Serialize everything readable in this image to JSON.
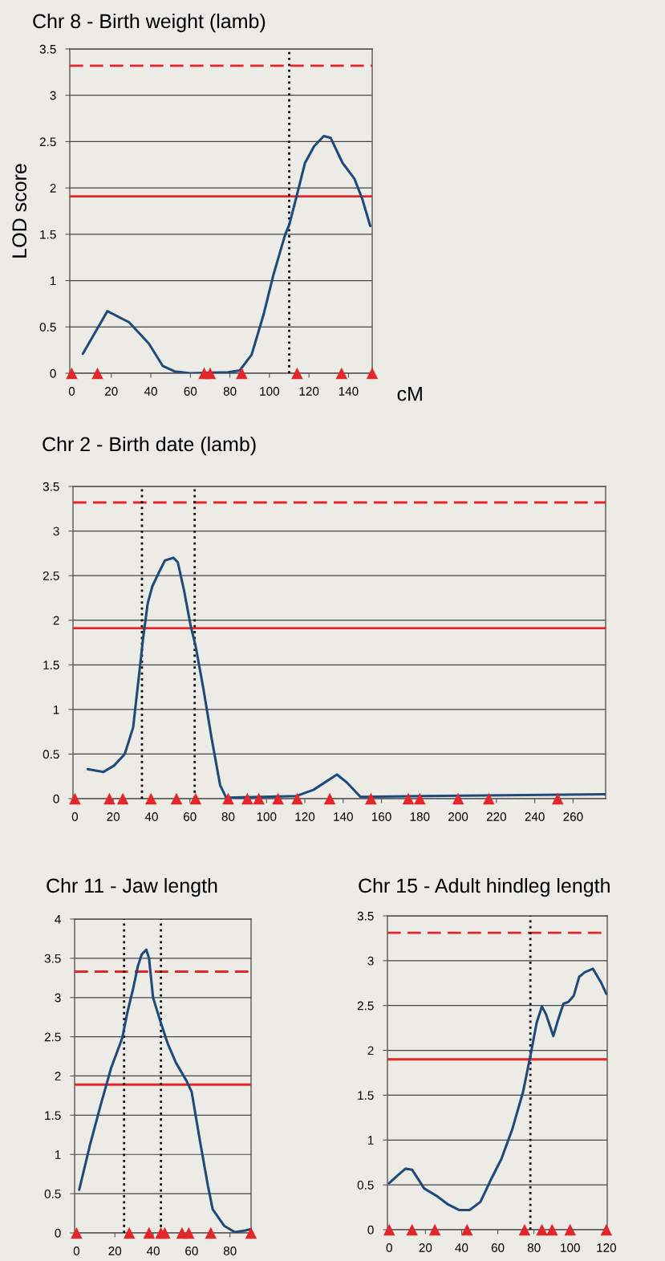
{
  "chart_data": [
    {
      "type": "line",
      "title": "Chr 8 - Birth weight (lamb)",
      "xlabel": "cM",
      "ylabel": "LOD score",
      "xlim": [
        -1,
        152
      ],
      "xticks": [
        0,
        20,
        40,
        60,
        80,
        100,
        120,
        140
      ],
      "ylim": [
        0,
        3.5
      ],
      "yticks": [
        0,
        0.5,
        1,
        1.5,
        2,
        2.5,
        3,
        3.5
      ],
      "grid": "y",
      "series": [
        {
          "type": "line",
          "color": "#1f4a7a",
          "x": [
            5.6,
            18,
            29,
            39,
            46,
            52,
            60,
            79,
            85,
            91,
            97,
            102,
            108,
            110,
            114,
            118,
            122.6,
            127.5,
            131,
            137,
            143,
            147,
            151
          ],
          "values": [
            0.21,
            0.67,
            0.55,
            0.32,
            0.08,
            0.02,
            0,
            0.01,
            0.03,
            0.2,
            0.63,
            1.06,
            1.5,
            1.6,
            1.93,
            2.27,
            2.45,
            2.56,
            2.54,
            2.27,
            2.1,
            1.88,
            1.59
          ]
        },
        {
          "type": "scatter",
          "color": "#e3262a",
          "marker": "triangle",
          "x": [
            0,
            13,
            67,
            70,
            86,
            114,
            136.5,
            152
          ],
          "values": [
            0,
            0,
            0,
            0,
            0,
            0,
            0,
            0
          ]
        }
      ],
      "ref_lines": [
        {
          "axis": "y",
          "value": 1.91,
          "color": "#e3262a",
          "line_style": "solid"
        },
        {
          "axis": "y",
          "value": 3.32,
          "color": "#e3262a",
          "line_style": "dashed"
        },
        {
          "axis": "x",
          "value": 110,
          "color": "#111111",
          "line_style": "dotted"
        }
      ]
    },
    {
      "type": "line",
      "title": "Chr 2 - Birth date (lamb)",
      "xlim": [
        -1,
        277
      ],
      "xticks": [
        0,
        20,
        40,
        60,
        80,
        100,
        120,
        140,
        160,
        180,
        200,
        220,
        240,
        260
      ],
      "ylim": [
        0,
        3.5
      ],
      "yticks": [
        0,
        0.5,
        1,
        1.5,
        2,
        2.5,
        3,
        3.5
      ],
      "grid": "y",
      "series": [
        {
          "type": "line",
          "color": "#1f4a7a",
          "x": [
            6.7,
            14.9,
            20.4,
            26,
            30.4,
            33.7,
            35.5,
            38,
            40.4,
            43.7,
            47,
            51.4,
            53.7,
            57,
            60.3,
            63,
            67,
            71.4,
            75.8,
            79,
            115.7,
            124.6,
            131,
            136.8,
            142,
            149,
            182,
            277
          ],
          "values": [
            0.33,
            0.3,
            0.37,
            0.5,
            0.8,
            1.43,
            1.78,
            2.19,
            2.38,
            2.53,
            2.67,
            2.7,
            2.65,
            2.33,
            1.95,
            1.71,
            1.24,
            0.67,
            0.15,
            0.01,
            0.03,
            0.1,
            0.19,
            0.27,
            0.18,
            0.02,
            0.03,
            0.05
          ]
        },
        {
          "type": "scatter",
          "color": "#e3262a",
          "marker": "triangle",
          "x": [
            0,
            18,
            25,
            39.7,
            53,
            63,
            80,
            90,
            96,
            106,
            116,
            133,
            154.5,
            174,
            180,
            200,
            216,
            252
          ],
          "values": [
            0,
            0,
            0,
            0,
            0,
            0,
            0,
            0,
            0,
            0,
            0,
            0,
            0,
            0,
            0,
            0,
            0,
            0
          ]
        }
      ],
      "ref_lines": [
        {
          "axis": "y",
          "value": 1.91,
          "color": "#e3262a",
          "line_style": "solid"
        },
        {
          "axis": "y",
          "value": 3.32,
          "color": "#e3262a",
          "line_style": "dashed"
        },
        {
          "axis": "x",
          "value": 35,
          "color": "#111111",
          "line_style": "dotted"
        },
        {
          "axis": "x",
          "value": 62.5,
          "color": "#111111",
          "line_style": "dotted"
        }
      ]
    },
    {
      "type": "line",
      "title": "Chr 11 - Jaw length",
      "xlim": [
        -1,
        91
      ],
      "xticks": [
        0,
        20,
        40,
        60,
        80
      ],
      "ylim": [
        0,
        4
      ],
      "yticks": [
        0,
        0.5,
        1,
        1.5,
        2,
        2.5,
        3,
        3.5,
        4
      ],
      "grid": "y",
      "series": [
        {
          "type": "line",
          "color": "#1f4a7a",
          "x": [
            1.4,
            7,
            12.6,
            18,
            23.8,
            26.6,
            29.4,
            32,
            34,
            36.4,
            37.8,
            39.9,
            43.4,
            47.6,
            51.8,
            57.3,
            60,
            64.3,
            68.5,
            71,
            77,
            82.5,
            88,
            91
          ],
          "values": [
            0.55,
            1.12,
            1.63,
            2.1,
            2.48,
            2.82,
            3.1,
            3.4,
            3.55,
            3.61,
            3.5,
            3.0,
            2.72,
            2.41,
            2.17,
            1.94,
            1.8,
            1.18,
            0.6,
            0.3,
            0.09,
            0.01,
            0.03,
            0.05
          ]
        },
        {
          "type": "scatter",
          "color": "#e3262a",
          "marker": "triangle",
          "x": [
            0,
            27.5,
            37.8,
            44,
            46,
            55,
            58.5,
            70,
            91
          ],
          "values": [
            0,
            0,
            0,
            0,
            0,
            0,
            0,
            0,
            0
          ]
        }
      ],
      "ref_lines": [
        {
          "axis": "y",
          "value": 1.89,
          "color": "#e3262a",
          "line_style": "solid"
        },
        {
          "axis": "y",
          "value": 3.33,
          "color": "#e3262a",
          "line_style": "dashed"
        },
        {
          "axis": "x",
          "value": 24.8,
          "color": "#111111",
          "line_style": "dotted"
        },
        {
          "axis": "x",
          "value": 44,
          "color": "#111111",
          "line_style": "dotted"
        }
      ]
    },
    {
      "type": "line",
      "title": "Chr 15 - Adult hindleg length",
      "xlim": [
        -1,
        120.5
      ],
      "xticks": [
        0,
        20,
        40,
        60,
        80,
        100,
        120
      ],
      "ylim": [
        0,
        3.5
      ],
      "yticks": [
        0,
        0.5,
        1,
        1.5,
        2,
        2.5,
        3,
        3.5
      ],
      "grid": "y",
      "series": [
        {
          "type": "line",
          "color": "#1f4a7a",
          "x": [
            0,
            4.4,
            8.9,
            12.6,
            19.3,
            26.7,
            32.6,
            38.5,
            44.4,
            50.4,
            56,
            62,
            68,
            74,
            78.5,
            81.5,
            84.4,
            86.7,
            90.7,
            93.3,
            96.3,
            99,
            102,
            105,
            108,
            112.6,
            117,
            120
          ],
          "values": [
            0.52,
            0.6,
            0.68,
            0.67,
            0.46,
            0.37,
            0.28,
            0.22,
            0.22,
            0.31,
            0.55,
            0.79,
            1.12,
            1.54,
            1.99,
            2.31,
            2.49,
            2.4,
            2.16,
            2.34,
            2.52,
            2.54,
            2.61,
            2.82,
            2.87,
            2.91,
            2.76,
            2.63
          ]
        },
        {
          "type": "scatter",
          "color": "#e3262a",
          "marker": "triangle",
          "x": [
            0,
            12.6,
            25.2,
            43,
            74.8,
            84.4,
            90,
            100,
            120
          ],
          "values": [
            0,
            0,
            0,
            0,
            0,
            0,
            0,
            0,
            0
          ]
        }
      ],
      "ref_lines": [
        {
          "axis": "y",
          "value": 1.9,
          "color": "#e3262a",
          "line_style": "solid"
        },
        {
          "axis": "y",
          "value": 3.31,
          "color": "#e3262a",
          "line_style": "dashed"
        },
        {
          "axis": "x",
          "value": 78,
          "color": "#111111",
          "line_style": "dotted"
        }
      ]
    }
  ]
}
